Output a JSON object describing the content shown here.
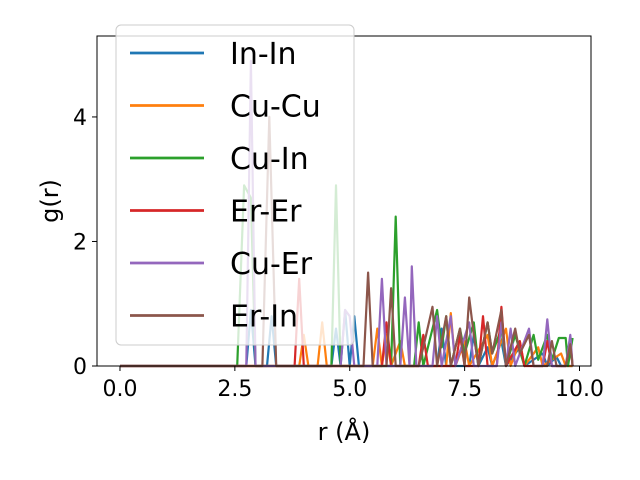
{
  "chart_data": {
    "type": "line",
    "xlabel": "r (Å)",
    "ylabel": "g(r)",
    "xlim": [
      -0.5,
      10.25
    ],
    "ylim": [
      0,
      5.3
    ],
    "xticks": [
      0.0,
      2.5,
      5.0,
      7.5,
      10.0
    ],
    "xtick_labels": [
      "0.0",
      "2.5",
      "5.0",
      "7.5",
      "10.0"
    ],
    "yticks": [
      0,
      2,
      4
    ],
    "ytick_labels": [
      "0",
      "2",
      "4"
    ],
    "grid": false,
    "legend_position": "upper-left",
    "series": [
      {
        "name": "In-In",
        "color": "#1f77b4",
        "points": [
          [
            0,
            0
          ],
          [
            2.6,
            0
          ],
          [
            2.75,
            0
          ],
          [
            2.85,
            0.9
          ],
          [
            2.95,
            0
          ],
          [
            3.2,
            0
          ],
          [
            3.3,
            0.8
          ],
          [
            3.4,
            0
          ],
          [
            4.6,
            0
          ],
          [
            4.7,
            0.6
          ],
          [
            4.8,
            0
          ],
          [
            4.9,
            0.9
          ],
          [
            5.0,
            0
          ],
          [
            5.1,
            0.8
          ],
          [
            5.2,
            0
          ],
          [
            6.9,
            0
          ],
          [
            7.0,
            0.6
          ],
          [
            7.1,
            0
          ],
          [
            7.6,
            0
          ],
          [
            7.7,
            0.5
          ],
          [
            7.8,
            0
          ],
          [
            8.0,
            0.3
          ],
          [
            8.1,
            0
          ],
          [
            8.3,
            0.4
          ],
          [
            8.4,
            0
          ],
          [
            8.7,
            0.3
          ],
          [
            8.8,
            0
          ],
          [
            9.2,
            0.2
          ],
          [
            9.3,
            0
          ],
          [
            9.5,
            0.15
          ],
          [
            9.6,
            0
          ],
          [
            9.85,
            0
          ]
        ]
      },
      {
        "name": "Cu-Cu",
        "color": "#ff7f0e",
        "points": [
          [
            0,
            0
          ],
          [
            3.9,
            0
          ],
          [
            4.0,
            0.5
          ],
          [
            4.1,
            0
          ],
          [
            4.3,
            0
          ],
          [
            4.4,
            0.7
          ],
          [
            4.5,
            0
          ],
          [
            5.5,
            0
          ],
          [
            5.6,
            0.6
          ],
          [
            5.7,
            0
          ],
          [
            5.8,
            0.5
          ],
          [
            5.9,
            0
          ],
          [
            6.1,
            0.4
          ],
          [
            6.2,
            0
          ],
          [
            7.1,
            0
          ],
          [
            7.2,
            0.85
          ],
          [
            7.3,
            0
          ],
          [
            7.5,
            0.4
          ],
          [
            7.6,
            0
          ],
          [
            8.0,
            0.5
          ],
          [
            8.1,
            0
          ],
          [
            8.4,
            0.6
          ],
          [
            8.5,
            0
          ],
          [
            8.7,
            0.4
          ],
          [
            8.8,
            0
          ],
          [
            9.1,
            0.3
          ],
          [
            9.2,
            0
          ],
          [
            9.6,
            0.2
          ],
          [
            9.7,
            0
          ],
          [
            9.85,
            0
          ]
        ]
      },
      {
        "name": "Cu-In",
        "color": "#2ca02c",
        "points": [
          [
            0,
            0
          ],
          [
            2.55,
            0
          ],
          [
            2.7,
            2.9
          ],
          [
            2.85,
            2.7
          ],
          [
            2.95,
            0
          ],
          [
            4.6,
            0
          ],
          [
            4.7,
            2.9
          ],
          [
            4.8,
            0
          ],
          [
            5.9,
            0
          ],
          [
            6.0,
            2.4
          ],
          [
            6.1,
            0
          ],
          [
            6.4,
            0
          ],
          [
            6.5,
            0.7
          ],
          [
            6.6,
            0
          ],
          [
            6.9,
            0.9
          ],
          [
            7.0,
            0.3
          ],
          [
            7.1,
            0.8
          ],
          [
            7.2,
            0
          ],
          [
            7.4,
            0.6
          ],
          [
            7.5,
            0.2
          ],
          [
            7.7,
            0.7
          ],
          [
            7.8,
            0
          ],
          [
            8.0,
            0.7
          ],
          [
            8.1,
            0.2
          ],
          [
            8.3,
            0.6
          ],
          [
            8.4,
            0
          ],
          [
            8.6,
            0.5
          ],
          [
            8.8,
            0
          ],
          [
            9.0,
            0.5
          ],
          [
            9.1,
            0.1
          ],
          [
            9.3,
            0.5
          ],
          [
            9.4,
            0.1
          ],
          [
            9.55,
            0.45
          ],
          [
            9.7,
            0.45
          ],
          [
            9.75,
            0
          ],
          [
            9.85,
            0.45
          ]
        ]
      },
      {
        "name": "Er-Er",
        "color": "#d62728",
        "points": [
          [
            0,
            0
          ],
          [
            3.8,
            0
          ],
          [
            3.9,
            1.4
          ],
          [
            4.0,
            0
          ],
          [
            5.7,
            0
          ],
          [
            5.8,
            0.7
          ],
          [
            5.9,
            0
          ],
          [
            6.5,
            0
          ],
          [
            6.6,
            0.5
          ],
          [
            6.7,
            0
          ],
          [
            7.3,
            0
          ],
          [
            7.4,
            0.5
          ],
          [
            7.5,
            0
          ],
          [
            7.8,
            0
          ],
          [
            7.9,
            0.8
          ],
          [
            8.0,
            0
          ],
          [
            8.2,
            0
          ],
          [
            8.3,
            0.95
          ],
          [
            8.4,
            0
          ],
          [
            8.7,
            0.4
          ],
          [
            8.8,
            0
          ],
          [
            9.2,
            0
          ],
          [
            9.3,
            0.4
          ],
          [
            9.4,
            0
          ],
          [
            9.7,
            0
          ],
          [
            9.8,
            0.4
          ],
          [
            9.85,
            0
          ]
        ]
      },
      {
        "name": "Cu-Er",
        "color": "#9467bd",
        "points": [
          [
            0,
            0
          ],
          [
            2.75,
            0
          ],
          [
            2.85,
            4.9
          ],
          [
            2.95,
            0
          ],
          [
            4.8,
            0
          ],
          [
            4.9,
            0.9
          ],
          [
            5.0,
            0.8
          ],
          [
            5.1,
            0
          ],
          [
            5.6,
            0
          ],
          [
            5.7,
            1.4
          ],
          [
            5.8,
            0
          ],
          [
            6.1,
            0
          ],
          [
            6.2,
            1.1
          ],
          [
            6.3,
            0
          ],
          [
            6.35,
            1.6
          ],
          [
            6.45,
            0
          ],
          [
            6.8,
            0
          ],
          [
            6.9,
            0.8
          ],
          [
            7.0,
            0
          ],
          [
            7.2,
            0.8
          ],
          [
            7.3,
            0
          ],
          [
            7.6,
            0.7
          ],
          [
            7.7,
            0
          ],
          [
            8.2,
            0
          ],
          [
            8.3,
            0.7
          ],
          [
            8.4,
            0
          ],
          [
            8.5,
            0.6
          ],
          [
            8.6,
            0
          ],
          [
            8.9,
            0.6
          ],
          [
            9.0,
            0
          ],
          [
            9.2,
            0
          ],
          [
            9.3,
            0.75
          ],
          [
            9.4,
            0
          ],
          [
            9.7,
            0
          ],
          [
            9.8,
            0.5
          ],
          [
            9.85,
            0
          ]
        ]
      },
      {
        "name": "Er-In",
        "color": "#8c564b",
        "points": [
          [
            0,
            0
          ],
          [
            3.1,
            0
          ],
          [
            3.25,
            4.0
          ],
          [
            3.4,
            0
          ],
          [
            5.3,
            0
          ],
          [
            5.4,
            1.5
          ],
          [
            5.5,
            0
          ],
          [
            5.8,
            0
          ],
          [
            5.9,
            1.25
          ],
          [
            6.0,
            0
          ],
          [
            6.5,
            0
          ],
          [
            6.6,
            0.3
          ],
          [
            6.8,
            0.95
          ],
          [
            6.9,
            0
          ],
          [
            7.1,
            0.8
          ],
          [
            7.2,
            0
          ],
          [
            7.4,
            0.6
          ],
          [
            7.5,
            0
          ],
          [
            7.6,
            1.1
          ],
          [
            7.7,
            0.5
          ],
          [
            7.8,
            0
          ],
          [
            8.0,
            0.7
          ],
          [
            8.1,
            0.2
          ],
          [
            8.3,
            0.9
          ],
          [
            8.4,
            0
          ],
          [
            8.6,
            0.6
          ],
          [
            8.7,
            0.2
          ],
          [
            8.9,
            0.5
          ],
          [
            9.0,
            0
          ],
          [
            9.3,
            0
          ],
          [
            9.4,
            0.4
          ],
          [
            9.5,
            0
          ],
          [
            9.7,
            0
          ],
          [
            9.8,
            0.35
          ],
          [
            9.85,
            0
          ]
        ]
      }
    ]
  }
}
